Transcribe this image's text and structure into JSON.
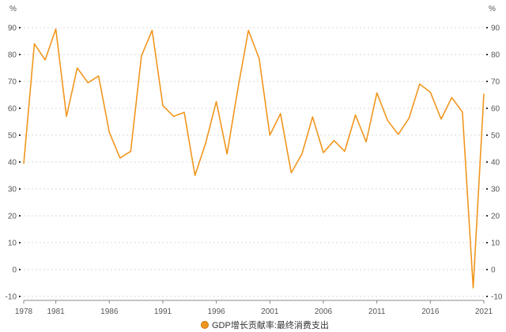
{
  "chart_data": {
    "type": "line",
    "unit_left": "%",
    "unit_right": "%",
    "ylim": [
      -10,
      90
    ],
    "yticks": [
      -10,
      0,
      10,
      20,
      30,
      40,
      50,
      60,
      70,
      80,
      90
    ],
    "xticks": [
      1978,
      1981,
      1986,
      1991,
      1996,
      2001,
      2006,
      2011,
      2016,
      2021
    ],
    "grid": true,
    "legend_position": "bottom-center",
    "series": [
      {
        "name": "GDP增长贡献率:最终消费支出",
        "color": "#f0961e",
        "x": [
          1978,
          1979,
          1980,
          1981,
          1982,
          1983,
          1984,
          1985,
          1986,
          1987,
          1988,
          1989,
          1990,
          1991,
          1992,
          1993,
          1994,
          1995,
          1996,
          1997,
          1998,
          1999,
          2000,
          2001,
          2002,
          2003,
          2004,
          2005,
          2006,
          2007,
          2008,
          2009,
          2010,
          2011,
          2012,
          2013,
          2014,
          2015,
          2016,
          2017,
          2018,
          2019,
          2020,
          2021
        ],
        "values": [
          39.4,
          84.0,
          78.0,
          89.5,
          57.0,
          75.0,
          69.5,
          72.0,
          51.0,
          41.5,
          44.0,
          79.5,
          89.0,
          61.0,
          57.0,
          58.5,
          35.0,
          47.0,
          62.5,
          43.0,
          67.0,
          89.0,
          78.5,
          50.0,
          58.0,
          36.0,
          43.0,
          56.8,
          43.5,
          48.0,
          44.0,
          57.5,
          47.5,
          65.7,
          55.5,
          50.3,
          56.3,
          69.0,
          66.0,
          56.0,
          64.0,
          58.6,
          -6.8,
          65.4
        ]
      }
    ]
  }
}
